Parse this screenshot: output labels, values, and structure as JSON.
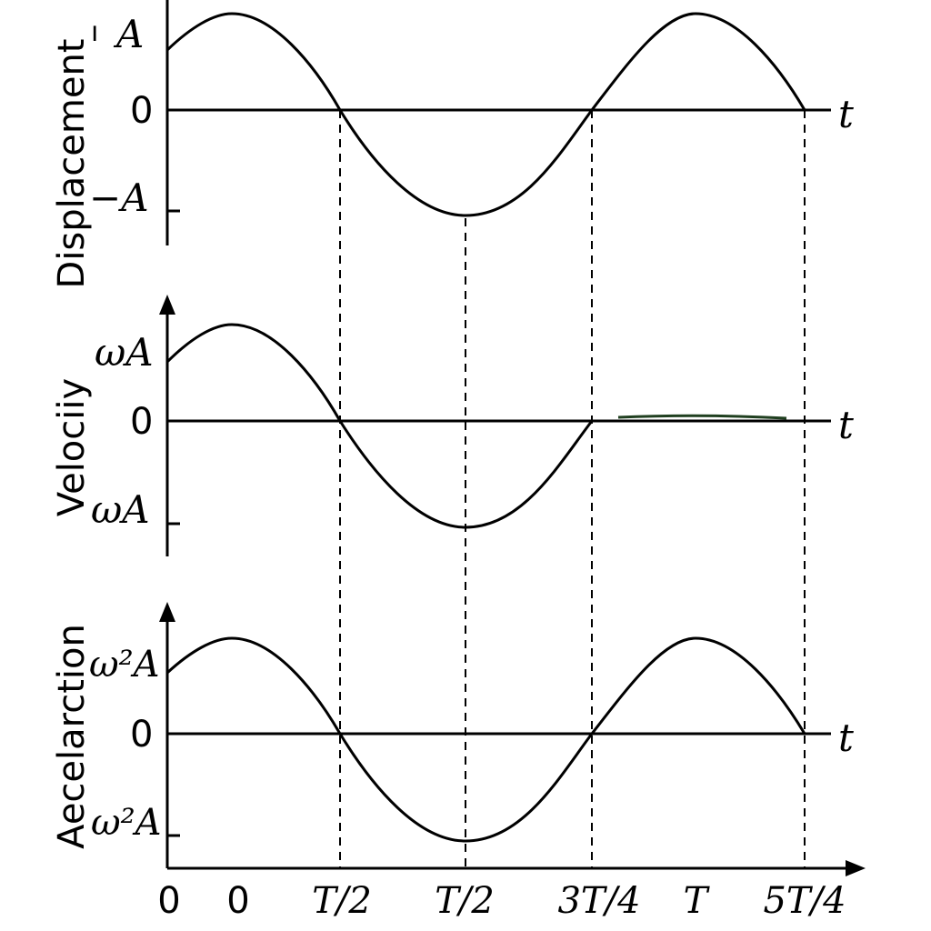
{
  "panels": {
    "displacement": {
      "ylabel": "Displacement",
      "top_label": "A",
      "top_mark": "ı",
      "zero": "0",
      "bottom_label": "−A",
      "t_label": "t"
    },
    "velocity": {
      "ylabel": "Velociiy",
      "top_label": "ωA",
      "zero": "0",
      "bottom_label": "ωA",
      "t_label": "t"
    },
    "acceleration": {
      "ylabel": "Aecelarction",
      "top_label": "ω²A",
      "zero": "0",
      "bottom_label": "ω²A",
      "t_label": "t"
    }
  },
  "x_ticks": [
    "0",
    "0",
    "T/2",
    "T/2",
    "3T/4",
    "T",
    "5T/4"
  ],
  "colors": {
    "ink": "#000000",
    "stray_line": "#1f3f1f"
  }
}
